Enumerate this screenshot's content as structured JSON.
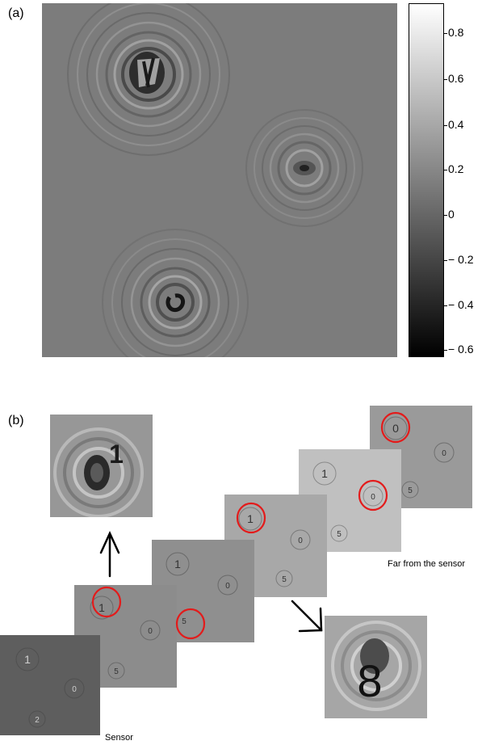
{
  "panel_a": {
    "label": "(a)",
    "colorbar": {
      "ticks": [
        "0.8",
        "0.6",
        "0.4",
        "0.2",
        "0",
        "− 0.2",
        "− 0.4",
        "− 0.6"
      ],
      "range": [
        -0.65,
        0.95
      ],
      "colormap": "gray"
    },
    "objects": [
      {
        "kind": "digit-rings"
      },
      {
        "kind": "rings"
      },
      {
        "kind": "swirl"
      }
    ]
  },
  "panel_b": {
    "label": "(b)",
    "slices": [
      {
        "digits": [
          "1",
          "0",
          "2"
        ],
        "tone": "#5e5e5e"
      },
      {
        "digits": [
          "1",
          "0",
          "5"
        ],
        "tone": "#8c8c8c"
      },
      {
        "digits": [
          "1",
          "0",
          "5"
        ],
        "tone": "#8f8f8f"
      },
      {
        "digits": [
          "1",
          "0",
          "5"
        ],
        "tone": "#a8a8a8"
      },
      {
        "digits": [
          "1",
          "0",
          "5"
        ],
        "tone": "#c0c0c0"
      },
      {
        "digits": [
          "0",
          "0",
          "5"
        ],
        "tone": "#9a9a9a"
      }
    ],
    "zoom_upper_digit": "1",
    "zoom_lower_digit": "8",
    "caption_far": "Far from the sensor",
    "caption_sensor": "Sensor",
    "highlight_color": "#e31b1b"
  }
}
